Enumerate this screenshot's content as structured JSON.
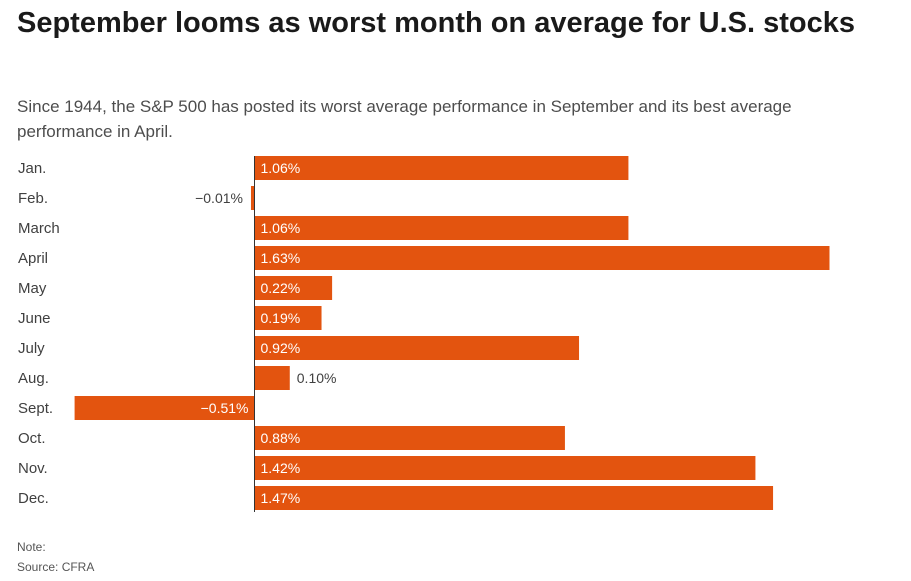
{
  "title": "September looms as worst month on average for U.S. stocks",
  "subtitle": "Since 1944, the S&P 500 has posted its worst average performance in September and its best average performance in April.",
  "note_label": "Note:",
  "source": "Source: CFRA",
  "colors": {
    "bar": "#e3540f",
    "axis": "#333333",
    "label_inside": "#ffffff",
    "label_outside": "#404040"
  },
  "chart_data": {
    "type": "bar",
    "orientation": "horizontal",
    "categories": [
      "Jan.",
      "Feb.",
      "March",
      "April",
      "May",
      "June",
      "July",
      "Aug.",
      "Sept.",
      "Oct.",
      "Nov.",
      "Dec."
    ],
    "values": [
      1.06,
      -0.01,
      1.06,
      1.63,
      0.22,
      0.19,
      0.92,
      0.1,
      -0.51,
      0.88,
      1.42,
      1.47
    ],
    "value_labels": [
      "1.06%",
      "−0.01%",
      "1.06%",
      "1.63%",
      "0.22%",
      "0.19%",
      "0.92%",
      "0.10%",
      "−0.51%",
      "0.88%",
      "1.42%",
      "1.47%"
    ],
    "title": "September looms as worst month on average for U.S. stocks",
    "xlabel": "",
    "ylabel": "",
    "xlim": [
      -0.51,
      1.63
    ],
    "grid": false,
    "legend": "none"
  }
}
